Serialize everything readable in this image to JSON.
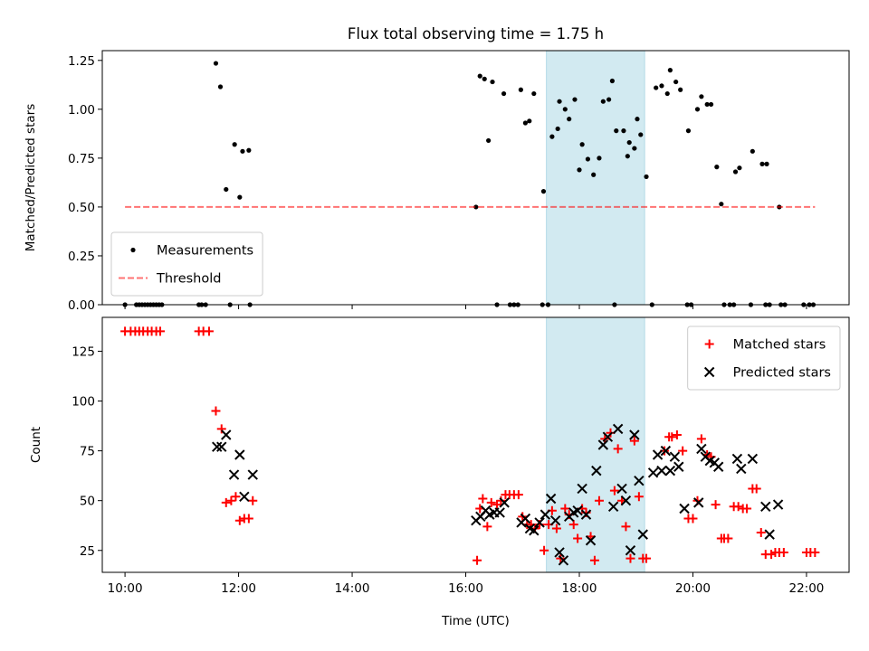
{
  "chart_data": [
    {
      "type": "scatter",
      "title": "Flux total observing time = 1.75 h",
      "xlabel": "",
      "ylabel": "Matched/Predicted stars",
      "xlim": [
        9.6,
        22.75
      ],
      "ylim": [
        0.0,
        1.3
      ],
      "xticks": [
        10,
        12,
        14,
        16,
        18,
        20,
        22
      ],
      "yticks": [
        0.0,
        0.25,
        0.5,
        0.75,
        1.0,
        1.25
      ],
      "ytick_labels": [
        "0.00",
        "0.25",
        "0.50",
        "0.75",
        "1.00",
        "1.25"
      ],
      "shaded_span": [
        17.42,
        19.15
      ],
      "shaded_color": "#add8e6",
      "legend_position": "lower-left",
      "grid": false,
      "series": [
        {
          "name": "Measurements",
          "kind": "points",
          "color": "#000000",
          "points": [
            [
              10.0,
              0.0
            ],
            [
              10.2,
              0.0
            ],
            [
              10.25,
              0.0
            ],
            [
              10.3,
              0.0
            ],
            [
              10.35,
              0.0
            ],
            [
              10.4,
              0.0
            ],
            [
              10.45,
              0.0
            ],
            [
              10.5,
              0.0
            ],
            [
              10.55,
              0.0
            ],
            [
              10.6,
              0.0
            ],
            [
              10.65,
              0.0
            ],
            [
              11.3,
              0.0
            ],
            [
              11.35,
              0.0
            ],
            [
              11.42,
              0.0
            ],
            [
              11.85,
              0.0
            ],
            [
              12.2,
              0.0
            ],
            [
              11.6,
              1.235
            ],
            [
              11.68,
              1.115
            ],
            [
              11.78,
              0.59
            ],
            [
              11.93,
              0.82
            ],
            [
              12.02,
              0.55
            ],
            [
              12.07,
              0.785
            ],
            [
              12.18,
              0.79
            ],
            [
              16.18,
              0.5
            ],
            [
              16.25,
              1.17
            ],
            [
              16.33,
              1.155
            ],
            [
              16.4,
              0.84
            ],
            [
              16.47,
              1.14
            ],
            [
              16.67,
              1.08
            ],
            [
              16.97,
              1.1
            ],
            [
              17.05,
              0.93
            ],
            [
              17.12,
              0.94
            ],
            [
              17.2,
              1.08
            ],
            [
              17.37,
              0.58
            ],
            [
              17.52,
              0.86
            ],
            [
              17.62,
              0.9
            ],
            [
              17.65,
              1.04
            ],
            [
              17.75,
              1.0
            ],
            [
              17.82,
              0.95
            ],
            [
              17.92,
              1.05
            ],
            [
              18.0,
              0.69
            ],
            [
              18.05,
              0.82
            ],
            [
              18.15,
              0.745
            ],
            [
              18.25,
              0.665
            ],
            [
              18.35,
              0.75
            ],
            [
              18.42,
              1.04
            ],
            [
              18.52,
              1.05
            ],
            [
              18.58,
              1.145
            ],
            [
              18.65,
              0.89
            ],
            [
              18.78,
              0.89
            ],
            [
              18.85,
              0.76
            ],
            [
              18.88,
              0.83
            ],
            [
              18.97,
              0.8
            ],
            [
              19.02,
              0.95
            ],
            [
              19.08,
              0.87
            ],
            [
              19.18,
              0.655
            ],
            [
              19.35,
              1.11
            ],
            [
              19.45,
              1.12
            ],
            [
              19.55,
              1.08
            ],
            [
              19.6,
              1.2
            ],
            [
              19.7,
              1.14
            ],
            [
              19.78,
              1.1
            ],
            [
              19.92,
              0.89
            ],
            [
              20.08,
              1.0
            ],
            [
              20.15,
              1.065
            ],
            [
              20.25,
              1.025
            ],
            [
              20.32,
              1.025
            ],
            [
              20.42,
              0.705
            ],
            [
              20.5,
              0.515
            ],
            [
              20.75,
              0.68
            ],
            [
              20.82,
              0.7
            ],
            [
              21.05,
              0.785
            ],
            [
              21.22,
              0.72
            ],
            [
              21.3,
              0.72
            ],
            [
              21.52,
              0.5
            ],
            [
              16.55,
              0.0
            ],
            [
              16.78,
              0.0
            ],
            [
              16.85,
              0.0
            ],
            [
              16.92,
              0.0
            ],
            [
              17.35,
              0.0
            ],
            [
              17.45,
              0.0
            ],
            [
              18.62,
              0.0
            ],
            [
              19.28,
              0.0
            ],
            [
              19.9,
              0.0
            ],
            [
              19.97,
              0.0
            ],
            [
              20.55,
              0.0
            ],
            [
              20.65,
              0.0
            ],
            [
              20.72,
              0.0
            ],
            [
              21.02,
              0.0
            ],
            [
              21.28,
              0.0
            ],
            [
              21.35,
              0.0
            ],
            [
              21.55,
              0.0
            ],
            [
              21.62,
              0.0
            ],
            [
              21.95,
              0.0
            ],
            [
              22.05,
              0.0
            ],
            [
              22.12,
              0.0
            ]
          ]
        },
        {
          "name": "Threshold",
          "kind": "dashed-line",
          "color": "#ff0000",
          "x": [
            10.0,
            22.15
          ],
          "y": [
            0.5,
            0.5
          ]
        }
      ]
    },
    {
      "type": "scatter",
      "title": "",
      "xlabel": "Time (UTC)",
      "ylabel": "Count",
      "xlim": [
        9.6,
        22.75
      ],
      "ylim": [
        14,
        142
      ],
      "xticks": [
        10,
        12,
        14,
        16,
        18,
        20,
        22
      ],
      "xtick_labels": [
        "10:00",
        "12:00",
        "14:00",
        "16:00",
        "18:00",
        "20:00",
        "22:00"
      ],
      "yticks": [
        25,
        50,
        75,
        100,
        125
      ],
      "ytick_labels": [
        "25",
        "50",
        "75",
        "100",
        "125"
      ],
      "shaded_span": [
        17.42,
        19.15
      ],
      "shaded_color": "#add8e6",
      "legend_position": "upper-right",
      "grid": false,
      "series": [
        {
          "name": "Matched stars",
          "marker": "plus",
          "color": "#ff0000",
          "points": [
            [
              10.0,
              135
            ],
            [
              10.1,
              135
            ],
            [
              10.18,
              135
            ],
            [
              10.25,
              135
            ],
            [
              10.32,
              135
            ],
            [
              10.4,
              135
            ],
            [
              10.47,
              135
            ],
            [
              10.55,
              135
            ],
            [
              10.62,
              135
            ],
            [
              11.3,
              135
            ],
            [
              11.38,
              135
            ],
            [
              11.48,
              135
            ],
            [
              11.6,
              95
            ],
            [
              11.7,
              86
            ],
            [
              11.78,
              49
            ],
            [
              11.87,
              50
            ],
            [
              11.95,
              52
            ],
            [
              12.02,
              40
            ],
            [
              12.1,
              41
            ],
            [
              12.18,
              41
            ],
            [
              12.25,
              50
            ],
            [
              16.2,
              20
            ],
            [
              16.25,
              46
            ],
            [
              16.3,
              51
            ],
            [
              16.38,
              37
            ],
            [
              16.45,
              49
            ],
            [
              16.55,
              48
            ],
            [
              16.62,
              50
            ],
            [
              16.7,
              53
            ],
            [
              16.77,
              53
            ],
            [
              16.85,
              53
            ],
            [
              16.93,
              53
            ],
            [
              17.0,
              42
            ],
            [
              17.08,
              38
            ],
            [
              17.15,
              38
            ],
            [
              17.22,
              36
            ],
            [
              17.3,
              38
            ],
            [
              17.38,
              25
            ],
            [
              17.46,
              38
            ],
            [
              17.52,
              45
            ],
            [
              17.6,
              36
            ],
            [
              17.67,
              21
            ],
            [
              17.75,
              46
            ],
            [
              17.82,
              43
            ],
            [
              17.9,
              38
            ],
            [
              17.97,
              31
            ],
            [
              18.05,
              46
            ],
            [
              18.12,
              44
            ],
            [
              18.2,
              32
            ],
            [
              18.27,
              20
            ],
            [
              18.35,
              50
            ],
            [
              18.45,
              81
            ],
            [
              18.55,
              84
            ],
            [
              18.62,
              55
            ],
            [
              18.68,
              76
            ],
            [
              18.75,
              50
            ],
            [
              18.82,
              37
            ],
            [
              18.9,
              21
            ],
            [
              18.97,
              80
            ],
            [
              19.05,
              52
            ],
            [
              19.12,
              21
            ],
            [
              19.18,
              21
            ],
            [
              19.5,
              75
            ],
            [
              19.58,
              82
            ],
            [
              19.63,
              82
            ],
            [
              19.72,
              83
            ],
            [
              19.82,
              75
            ],
            [
              19.92,
              41
            ],
            [
              20.0,
              41
            ],
            [
              20.08,
              50
            ],
            [
              20.15,
              81
            ],
            [
              20.25,
              73
            ],
            [
              20.32,
              72
            ],
            [
              20.4,
              48
            ],
            [
              20.5,
              31
            ],
            [
              20.55,
              31
            ],
            [
              20.62,
              31
            ],
            [
              20.72,
              47
            ],
            [
              20.8,
              47
            ],
            [
              20.88,
              46
            ],
            [
              20.95,
              46
            ],
            [
              21.05,
              56
            ],
            [
              21.12,
              56
            ],
            [
              21.2,
              34
            ],
            [
              21.28,
              23
            ],
            [
              21.38,
              23
            ],
            [
              21.45,
              24
            ],
            [
              21.52,
              24
            ],
            [
              21.6,
              24
            ],
            [
              22.0,
              24
            ],
            [
              22.07,
              24
            ],
            [
              22.15,
              24
            ]
          ]
        },
        {
          "name": "Predicted stars",
          "marker": "cross",
          "color": "#000000",
          "points": [
            [
              11.62,
              77
            ],
            [
              11.7,
              77
            ],
            [
              11.78,
              83
            ],
            [
              11.92,
              63
            ],
            [
              12.02,
              73
            ],
            [
              12.1,
              52
            ],
            [
              12.25,
              63
            ],
            [
              16.18,
              40
            ],
            [
              16.26,
              42
            ],
            [
              16.35,
              45
            ],
            [
              16.42,
              43
            ],
            [
              16.5,
              44
            ],
            [
              16.6,
              44
            ],
            [
              16.68,
              49
            ],
            [
              16.98,
              39
            ],
            [
              17.05,
              41
            ],
            [
              17.13,
              36
            ],
            [
              17.2,
              35
            ],
            [
              17.3,
              39
            ],
            [
              17.4,
              43
            ],
            [
              17.5,
              51
            ],
            [
              17.58,
              40
            ],
            [
              17.65,
              24
            ],
            [
              17.72,
              20
            ],
            [
              17.82,
              42
            ],
            [
              17.9,
              44
            ],
            [
              17.97,
              45
            ],
            [
              18.05,
              56
            ],
            [
              18.12,
              43
            ],
            [
              18.2,
              30
            ],
            [
              18.3,
              65
            ],
            [
              18.42,
              78
            ],
            [
              18.5,
              82
            ],
            [
              18.6,
              47
            ],
            [
              18.68,
              86
            ],
            [
              18.75,
              56
            ],
            [
              18.82,
              50
            ],
            [
              18.9,
              25
            ],
            [
              18.97,
              83
            ],
            [
              19.05,
              60
            ],
            [
              19.12,
              33
            ],
            [
              19.3,
              64
            ],
            [
              19.38,
              73
            ],
            [
              19.45,
              65
            ],
            [
              19.52,
              75
            ],
            [
              19.6,
              65
            ],
            [
              19.68,
              72
            ],
            [
              19.75,
              67
            ],
            [
              19.85,
              46
            ],
            [
              20.1,
              49
            ],
            [
              20.15,
              76
            ],
            [
              20.22,
              72
            ],
            [
              20.3,
              70
            ],
            [
              20.38,
              69
            ],
            [
              20.45,
              67
            ],
            [
              20.78,
              71
            ],
            [
              20.85,
              66
            ],
            [
              21.05,
              71
            ],
            [
              21.28,
              47
            ],
            [
              21.35,
              33
            ],
            [
              21.5,
              48
            ]
          ]
        }
      ]
    }
  ]
}
